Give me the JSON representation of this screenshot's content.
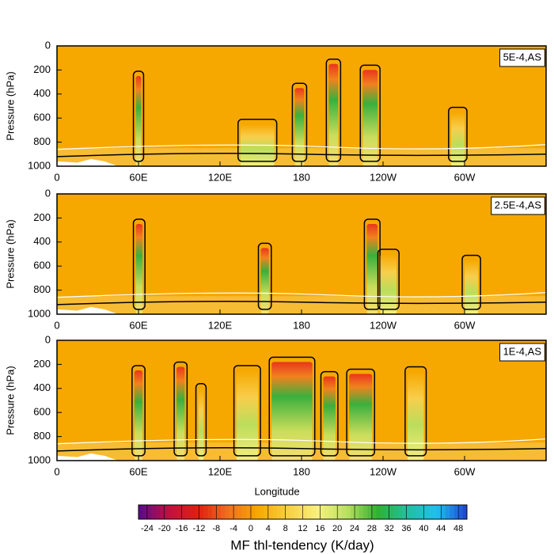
{
  "chart_data": [
    {
      "type": "contour",
      "label": "5E-4,AS",
      "ylabel": "Pressure (hPa)",
      "background_color": "#f6a800",
      "xlim": [
        0,
        360
      ],
      "xticks": [
        0,
        {
          "value": 60,
          "label": "60E"
        },
        {
          "value": 120,
          "label": "120E"
        },
        {
          "value": 180,
          "label": "180"
        },
        {
          "value": 240,
          "label": "120W"
        },
        {
          "value": 300,
          "label": "60W"
        }
      ],
      "ylim": [
        1000,
        0
      ],
      "yticks": [
        0,
        200,
        400,
        600,
        800,
        1000
      ]
    },
    {
      "type": "contour",
      "label": "2.5E-4,AS",
      "ylabel": "Pressure (hPa)",
      "background_color": "#f6a800",
      "xlim": [
        0,
        360
      ],
      "xticks": [
        0,
        {
          "value": 60,
          "label": "60E"
        },
        {
          "value": 120,
          "label": "120E"
        },
        {
          "value": 180,
          "label": "180"
        },
        {
          "value": 240,
          "label": "120W"
        },
        {
          "value": 300,
          "label": "60W"
        }
      ],
      "ylim": [
        1000,
        0
      ],
      "yticks": [
        0,
        200,
        400,
        600,
        800,
        1000
      ]
    },
    {
      "type": "contour",
      "label": "1E-4,AS",
      "ylabel": "Pressure (hPa)",
      "xlabel": "Longitude",
      "background_color": "#f6a800",
      "xlim": [
        0,
        360
      ],
      "xticks": [
        0,
        {
          "value": 60,
          "label": "60E"
        },
        {
          "value": 120,
          "label": "120E"
        },
        {
          "value": 180,
          "label": "180"
        },
        {
          "value": 240,
          "label": "120W"
        },
        {
          "value": 300,
          "label": "60W"
        }
      ],
      "ylim": [
        1000,
        0
      ],
      "yticks": [
        0,
        200,
        400,
        600,
        800,
        1000
      ]
    }
  ],
  "colorbar": {
    "title": "MF thl-tendency (K/day)",
    "lim": [
      -26,
      50
    ],
    "ticks": [
      -24,
      -20,
      -16,
      -12,
      -8,
      -4,
      0,
      4,
      8,
      12,
      16,
      20,
      24,
      28,
      32,
      36,
      40,
      44,
      48
    ],
    "colors": [
      "#5a0a8c",
      "#c01040",
      "#e02010",
      "#f07020",
      "#f6a800",
      "#f8d040",
      "#f8f080",
      "#b8e060",
      "#30b030",
      "#20c0a0",
      "#20c0f0",
      "#2040d0"
    ]
  }
}
